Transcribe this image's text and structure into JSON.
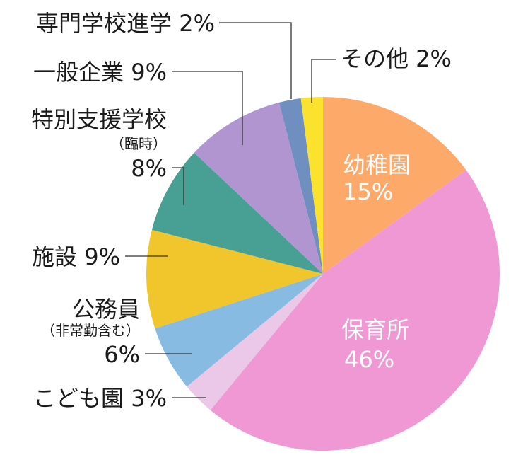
{
  "chart_data": {
    "type": "pie",
    "start": "12 o'clock, clockwise",
    "categories": [
      "幼稚園",
      "保育所",
      "こども園",
      "公務員（非常勤含む）",
      "施設",
      "特別支援学校（臨時）",
      "一般企業",
      "専門学校進学",
      "その他"
    ],
    "values": [
      15,
      46,
      3,
      6,
      9,
      8,
      9,
      2,
      2
    ],
    "colors": [
      "#FDA96A",
      "#EF98D4",
      "#EBC8E8",
      "#88BBE2",
      "#F0C62C",
      "#48A095",
      "#B195D1",
      "#6F8FC1",
      "#FBE22D"
    ],
    "labels": {
      "youchien": {
        "name": "幼稚園",
        "pct": "15%"
      },
      "hoikusho": {
        "name": "保育所",
        "pct": "46%"
      },
      "kodomoen": {
        "text": "こども園 3%"
      },
      "koumuin": {
        "name": "公務員",
        "sub": "（非常勤含む）",
        "pct": "6%"
      },
      "shisetsu": {
        "text": "施設 9%"
      },
      "tokubetsu": {
        "name": "特別支援学校",
        "sub": "（臨時）",
        "pct": "8%"
      },
      "ippan": {
        "text": "一般企業 9%"
      },
      "senmon": {
        "text": "専門学校進学 2%"
      },
      "sonota": {
        "text": "その他 2%"
      }
    }
  }
}
